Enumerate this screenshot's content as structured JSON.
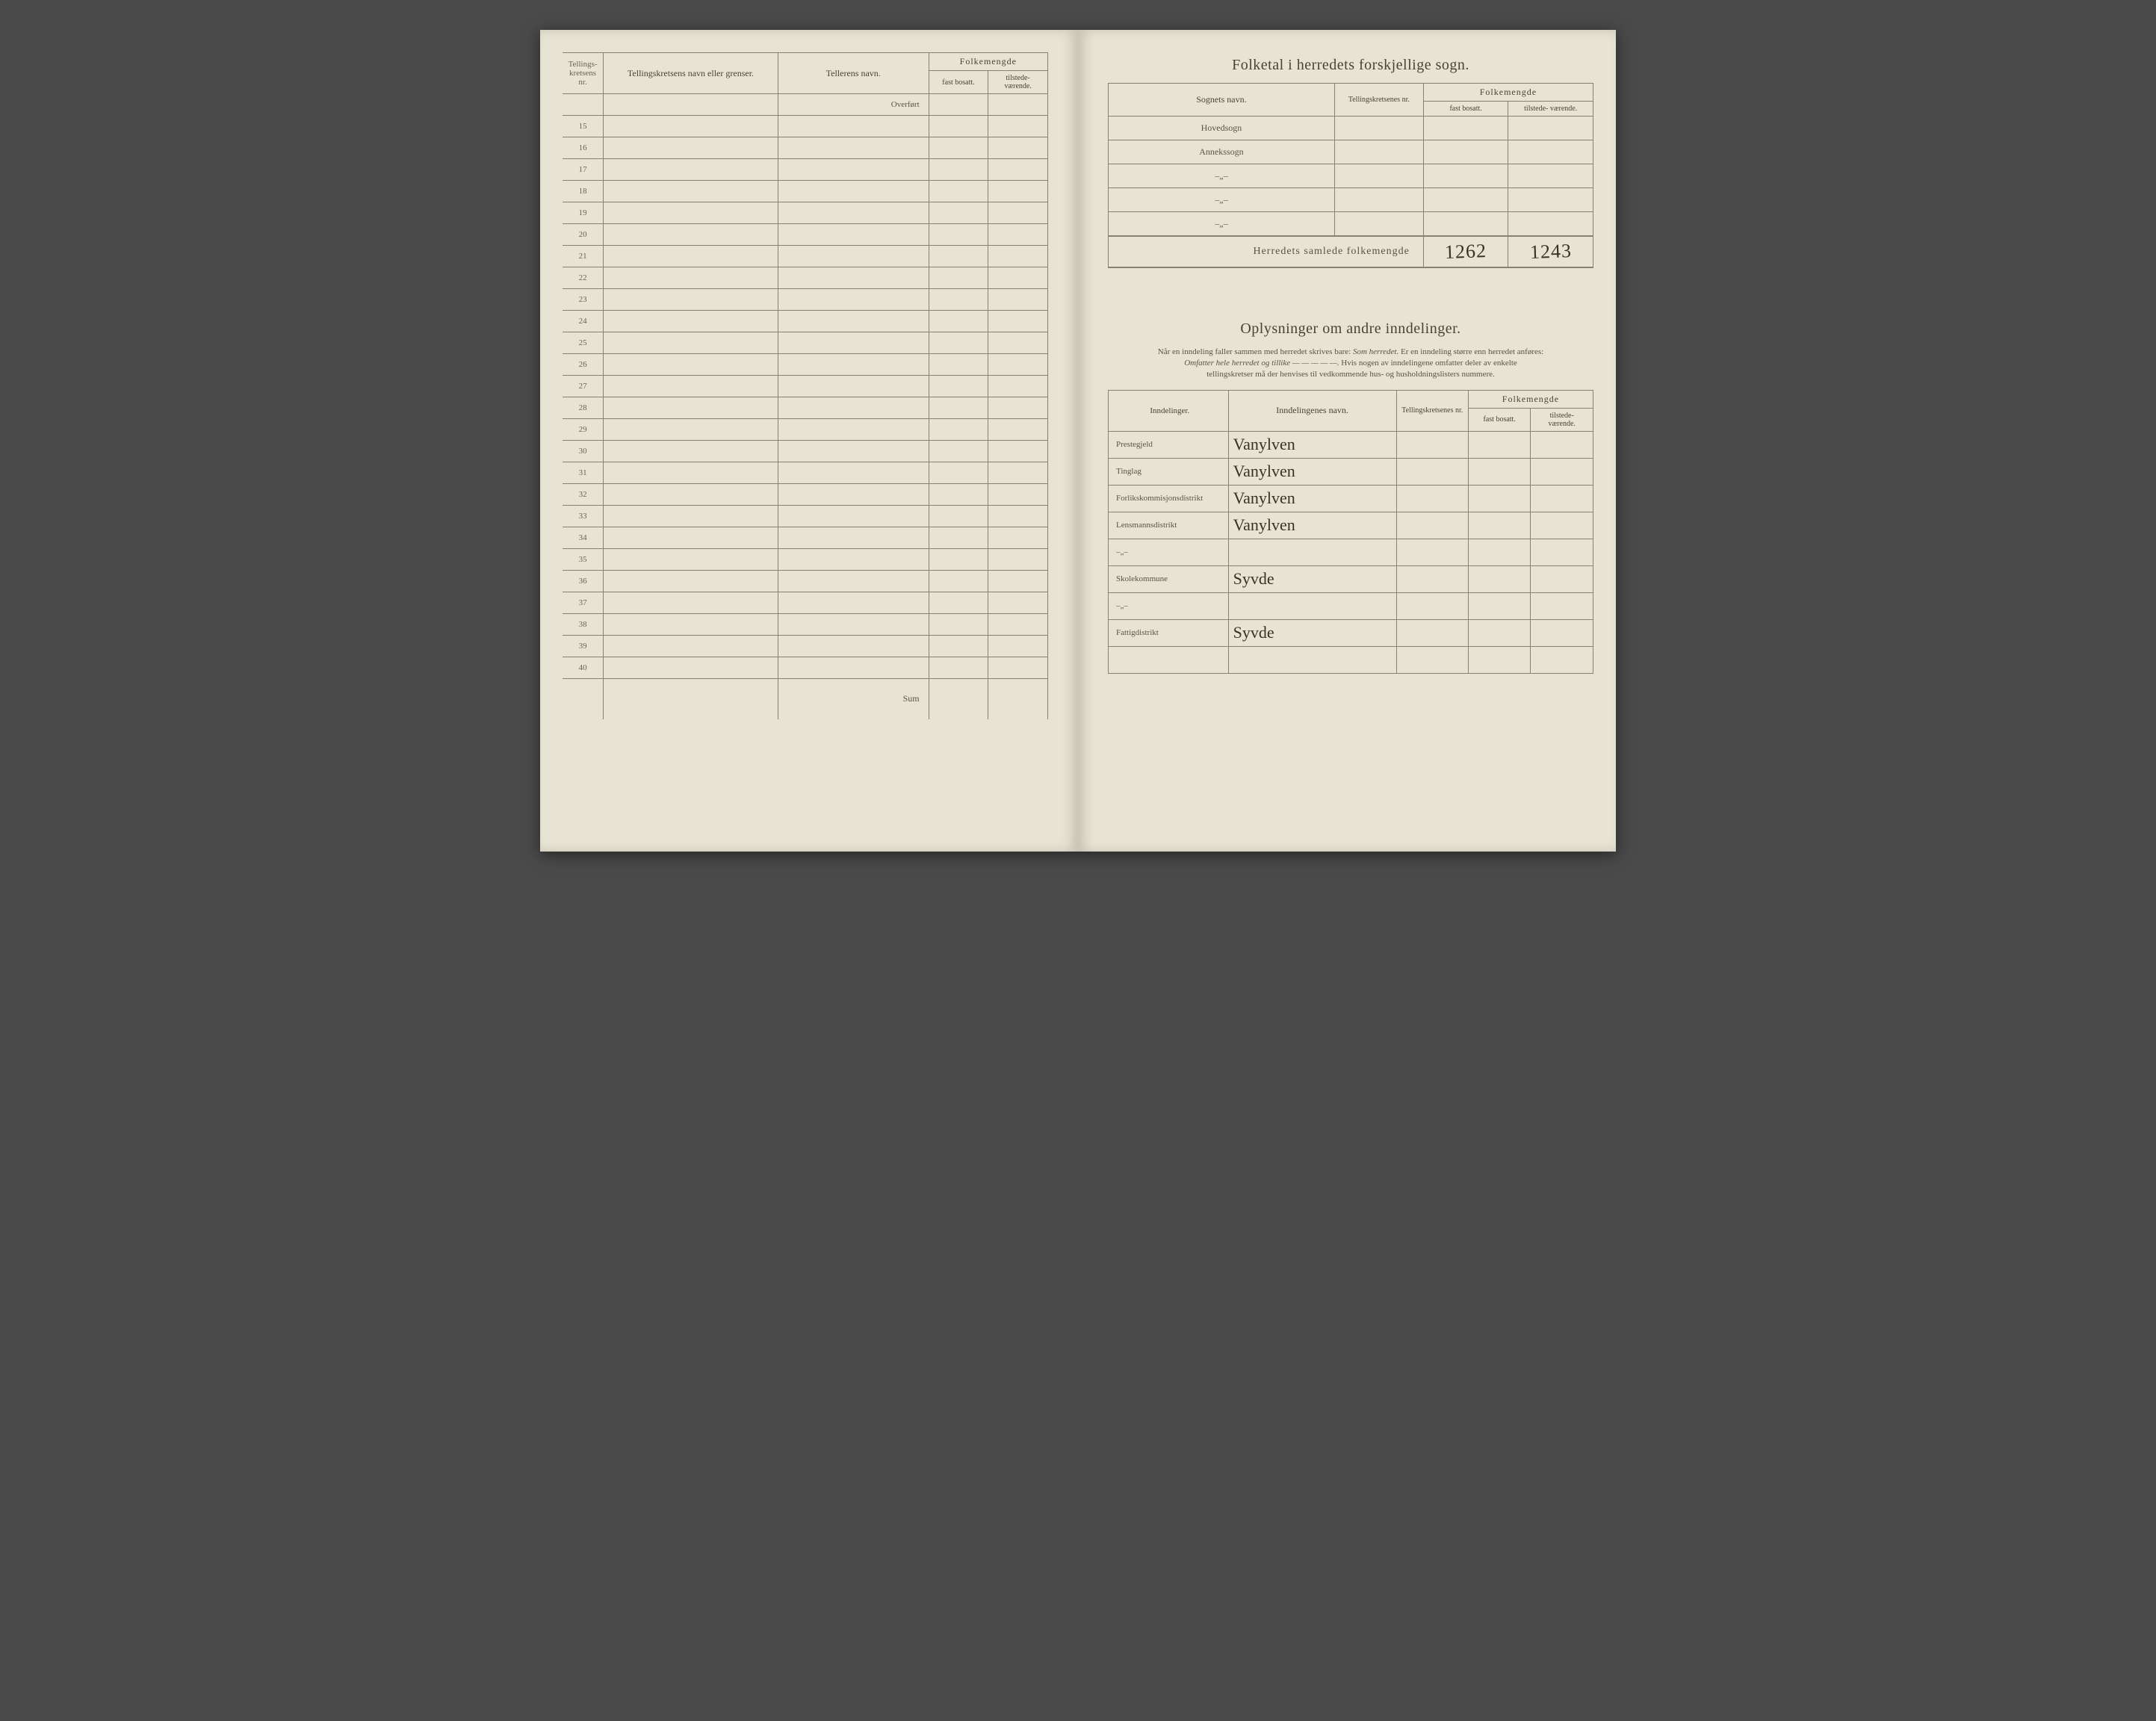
{
  "leftPage": {
    "headers": {
      "kretsNr": "Tellings-\nkretsens\nnr.",
      "kretsNavn": "Tellingskretsens navn eller grenser.",
      "tellerNavn": "Tellerens navn.",
      "folkemengde": "Folkemengde",
      "fast": "fast\nbosatt.",
      "tilstede": "tilstede-\nværende."
    },
    "overfort": "Overført",
    "rowStart": 15,
    "rowEnd": 40,
    "sum": "Sum"
  },
  "rightPage": {
    "sognTitle": "Folketal i herredets forskjellige sogn.",
    "sognHeaders": {
      "sognNavn": "Sognets navn.",
      "tkNr": "Tellingskretsenes\nnr.",
      "folkemengde": "Folkemengde",
      "fast": "fast\nbosatt.",
      "tilstede": "tilstede-\nværende."
    },
    "sognRows": [
      {
        "label": "Hovedsogn"
      },
      {
        "label": "Annekssogn"
      },
      {
        "label": "–„–"
      },
      {
        "label": "–„–"
      },
      {
        "label": "–„–"
      }
    ],
    "totalLabel": "Herredets samlede folkemengde",
    "totalFast": "1262",
    "totalTilstede": "1243",
    "oplysTitle": "Oplysninger om andre inndelinger.",
    "instructions": {
      "line1a": "Når en inndeling faller sammen med herredet skrives bare: ",
      "line1b": "Som herredet.",
      "line1c": " Er en inndeling større enn herredet anføres:",
      "line2a": "Omfatter hele herredet og tillike — — — — —.",
      "line2b": " Hvis nogen av inndelingene omfatter deler av enkelte",
      "line3": "tellingskretser må der henvises til vedkommende hus- og husholdningslisters nummere."
    },
    "inndHeaders": {
      "inndelinger": "Inndelinger.",
      "navn": "Inndelingenes navn.",
      "tkNr": "Tellingskretsenes\nnr.",
      "folkemengde": "Folkemengde",
      "fast": "fast\nbosatt.",
      "tilstede": "tilstede-\nværende."
    },
    "inndRows": [
      {
        "label": "Prestegjeld",
        "value": "Vanylven"
      },
      {
        "label": "Tinglag",
        "value": "Vanylven"
      },
      {
        "label": "Forlikskommisjonsdistrikt",
        "value": "Vanylven"
      },
      {
        "label": "Lensmannsdistrikt",
        "value": "Vanylven"
      },
      {
        "label": "–„–",
        "value": ""
      },
      {
        "label": "Skolekommune",
        "value": "Syvde"
      },
      {
        "label": "–„–",
        "value": ""
      },
      {
        "label": "Fattigdistrikt",
        "value": "Syvde"
      },
      {
        "label": "",
        "value": ""
      }
    ]
  }
}
